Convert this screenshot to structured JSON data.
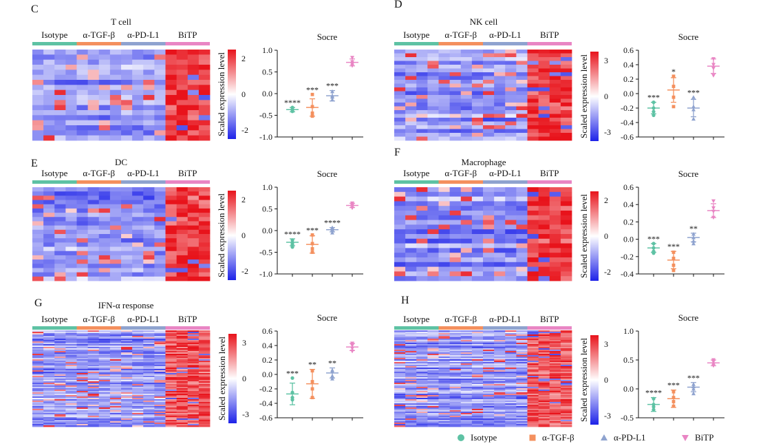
{
  "colors": {
    "isotype": "#5ec2a4",
    "tgf": "#f4905e",
    "pdl1": "#8fa3cf",
    "bitp": "#e986c4",
    "high": "#e8131b",
    "low": "#1d22e8",
    "mid": "#ffffff"
  },
  "groups": [
    "Isotype",
    "α-TGF-β",
    "α-PD-L1",
    "BiTP"
  ],
  "colorbar_label": "Scaled expression level",
  "legend": {
    "items": [
      {
        "name": "Isotype",
        "marker": "circle",
        "color": "#5ec2a4"
      },
      {
        "name": "α-TGF-β",
        "marker": "square",
        "color": "#f4905e"
      },
      {
        "name": "α-PD-L1",
        "marker": "triangle-up",
        "color": "#8fa3cf"
      },
      {
        "name": "BiTP",
        "marker": "triangle-down",
        "color": "#e986c4"
      }
    ]
  },
  "chart_data": [
    {
      "panel": "C",
      "type": "heatmap",
      "title": "T cell",
      "rows": 18,
      "colorbar_ticks": [
        2,
        0,
        -2
      ],
      "pattern": "bitp_high",
      "score": {
        "type": "scatter",
        "title": "Socre",
        "ylim": [
          -1.0,
          1.0
        ],
        "yticks": [
          "1.0",
          "0.5",
          "0.0",
          "-0.5",
          "-1.0"
        ],
        "ytick_values": [
          1.0,
          0.5,
          0.0,
          -0.5,
          -1.0
        ],
        "means": [
          -0.37,
          -0.32,
          -0.05,
          0.72
        ],
        "sd": [
          0.05,
          0.2,
          0.12,
          0.08
        ],
        "points": [
          [
            -0.32,
            -0.38,
            -0.41,
            -0.36
          ],
          [
            -0.02,
            -0.45,
            -0.52,
            -0.3
          ],
          [
            0.05,
            -0.05,
            -0.14,
            -0.08
          ],
          [
            0.83,
            0.73,
            0.68,
            0.64
          ]
        ],
        "sig": [
          "****",
          "***",
          "***",
          ""
        ]
      }
    },
    {
      "panel": "D",
      "type": "heatmap",
      "title": "NK cell",
      "rows": 24,
      "colorbar_ticks": [
        3,
        0,
        -3
      ],
      "pattern": "bitp_high",
      "score": {
        "type": "scatter",
        "title": "Socre",
        "ylim": [
          -0.6,
          0.6
        ],
        "yticks": [
          "0.6",
          "0.4",
          "0.2",
          "0.0",
          "-0.2",
          "-0.4",
          "-0.6"
        ],
        "ytick_values": [
          0.6,
          0.4,
          0.2,
          0.0,
          -0.2,
          -0.4,
          -0.6
        ],
        "means": [
          -0.2,
          0.05,
          -0.2,
          0.38
        ],
        "sd": [
          0.08,
          0.17,
          0.12,
          0.1
        ],
        "points": [
          [
            -0.12,
            -0.2,
            -0.25,
            -0.3
          ],
          [
            0.24,
            0.1,
            -0.05,
            -0.18
          ],
          [
            -0.05,
            -0.18,
            -0.22,
            -0.35
          ],
          [
            0.48,
            0.4,
            0.35,
            0.25
          ]
        ],
        "sig": [
          "***",
          "*",
          "***",
          ""
        ]
      }
    },
    {
      "panel": "E",
      "type": "heatmap",
      "title": "DC",
      "rows": 22,
      "colorbar_ticks": [
        2,
        0,
        -2
      ],
      "pattern": "bitp_high",
      "score": {
        "type": "scatter",
        "title": "Socre",
        "ylim": [
          -1.0,
          1.0
        ],
        "yticks": [
          "1.0",
          "0.5",
          "0.0",
          "-0.5",
          "-1.0"
        ],
        "ytick_values": [
          1.0,
          0.5,
          0.0,
          -0.5,
          -1.0
        ],
        "means": [
          -0.27,
          -0.32,
          0.02,
          0.58
        ],
        "sd": [
          0.08,
          0.2,
          0.05,
          0.05
        ],
        "points": [
          [
            -0.22,
            -0.28,
            -0.32,
            -0.38
          ],
          [
            -0.1,
            -0.3,
            -0.42,
            -0.5
          ],
          [
            0.07,
            0.03,
            0.0,
            -0.05
          ],
          [
            0.63,
            0.6,
            0.57,
            0.52
          ]
        ],
        "sig": [
          "****",
          "***",
          "****",
          ""
        ]
      }
    },
    {
      "panel": "F",
      "type": "heatmap",
      "title": "Macrophage",
      "rows": 20,
      "colorbar_ticks": [
        2,
        0,
        -2
      ],
      "pattern": "bitp_high",
      "score": {
        "type": "scatter",
        "title": "Socre",
        "ylim": [
          -0.4,
          0.6
        ],
        "yticks": [
          "0.6",
          "0.4",
          "0.2",
          "0.0",
          "-0.2",
          "-0.4"
        ],
        "ytick_values": [
          0.6,
          0.4,
          0.2,
          0.0,
          -0.2,
          -0.4
        ],
        "means": [
          -0.1,
          -0.24,
          0.02,
          0.33
        ],
        "sd": [
          0.05,
          0.1,
          0.05,
          0.08
        ],
        "points": [
          [
            -0.05,
            -0.1,
            -0.14,
            -0.16
          ],
          [
            -0.15,
            -0.22,
            -0.3,
            -0.36
          ],
          [
            0.06,
            0.02,
            -0.02,
            -0.05
          ],
          [
            0.44,
            0.36,
            0.32,
            0.25
          ]
        ],
        "sig": [
          "***",
          "***",
          "**",
          ""
        ]
      }
    },
    {
      "panel": "G",
      "type": "heatmap",
      "title": "IFN-α response",
      "rows": 70,
      "colorbar_ticks": [
        3,
        0,
        -3
      ],
      "pattern": "bitp_high_strong",
      "score": {
        "type": "scatter",
        "title": "Socre",
        "ylim": [
          -0.6,
          0.6
        ],
        "yticks": [
          "0.6",
          "0.4",
          "0.2",
          "0.0",
          "-0.2",
          "-0.4",
          "-0.6"
        ],
        "ytick_values": [
          0.6,
          0.4,
          0.2,
          0.0,
          -0.2,
          -0.4,
          -0.6
        ],
        "means": [
          -0.27,
          -0.13,
          0.02,
          0.38
        ],
        "sd": [
          0.15,
          0.2,
          0.07,
          0.05
        ],
        "points": [
          [
            -0.05,
            -0.25,
            -0.32,
            -0.35
          ],
          [
            0.05,
            -0.1,
            -0.2,
            -0.32
          ],
          [
            0.06,
            0.04,
            -0.02,
            -0.06
          ],
          [
            0.43,
            0.4,
            0.36,
            0.32
          ]
        ],
        "sig": [
          "***",
          "**",
          "**",
          ""
        ]
      }
    },
    {
      "panel": "H",
      "type": "heatmap",
      "title": "",
      "rows": 70,
      "colorbar_ticks": [
        3,
        0,
        -3
      ],
      "pattern": "bitp_high_strong",
      "score": {
        "type": "scatter",
        "title": "Socre",
        "ylim": [
          -0.5,
          1.0
        ],
        "yticks": [
          "1.0",
          "0.5",
          "0.0",
          "-0.5"
        ],
        "ytick_values": [
          1.0,
          0.5,
          0.0,
          -0.5
        ],
        "means": [
          -0.27,
          -0.17,
          0.03,
          0.45
        ],
        "sd": [
          0.12,
          0.15,
          0.08,
          0.05
        ],
        "points": [
          [
            -0.17,
            -0.27,
            -0.31,
            -0.36
          ],
          [
            -0.05,
            -0.15,
            -0.22,
            -0.3
          ],
          [
            0.08,
            0.04,
            0.0,
            -0.08
          ],
          [
            0.5,
            0.47,
            0.43,
            0.4
          ]
        ],
        "sig": [
          "****",
          "***",
          "***",
          ""
        ]
      }
    }
  ]
}
